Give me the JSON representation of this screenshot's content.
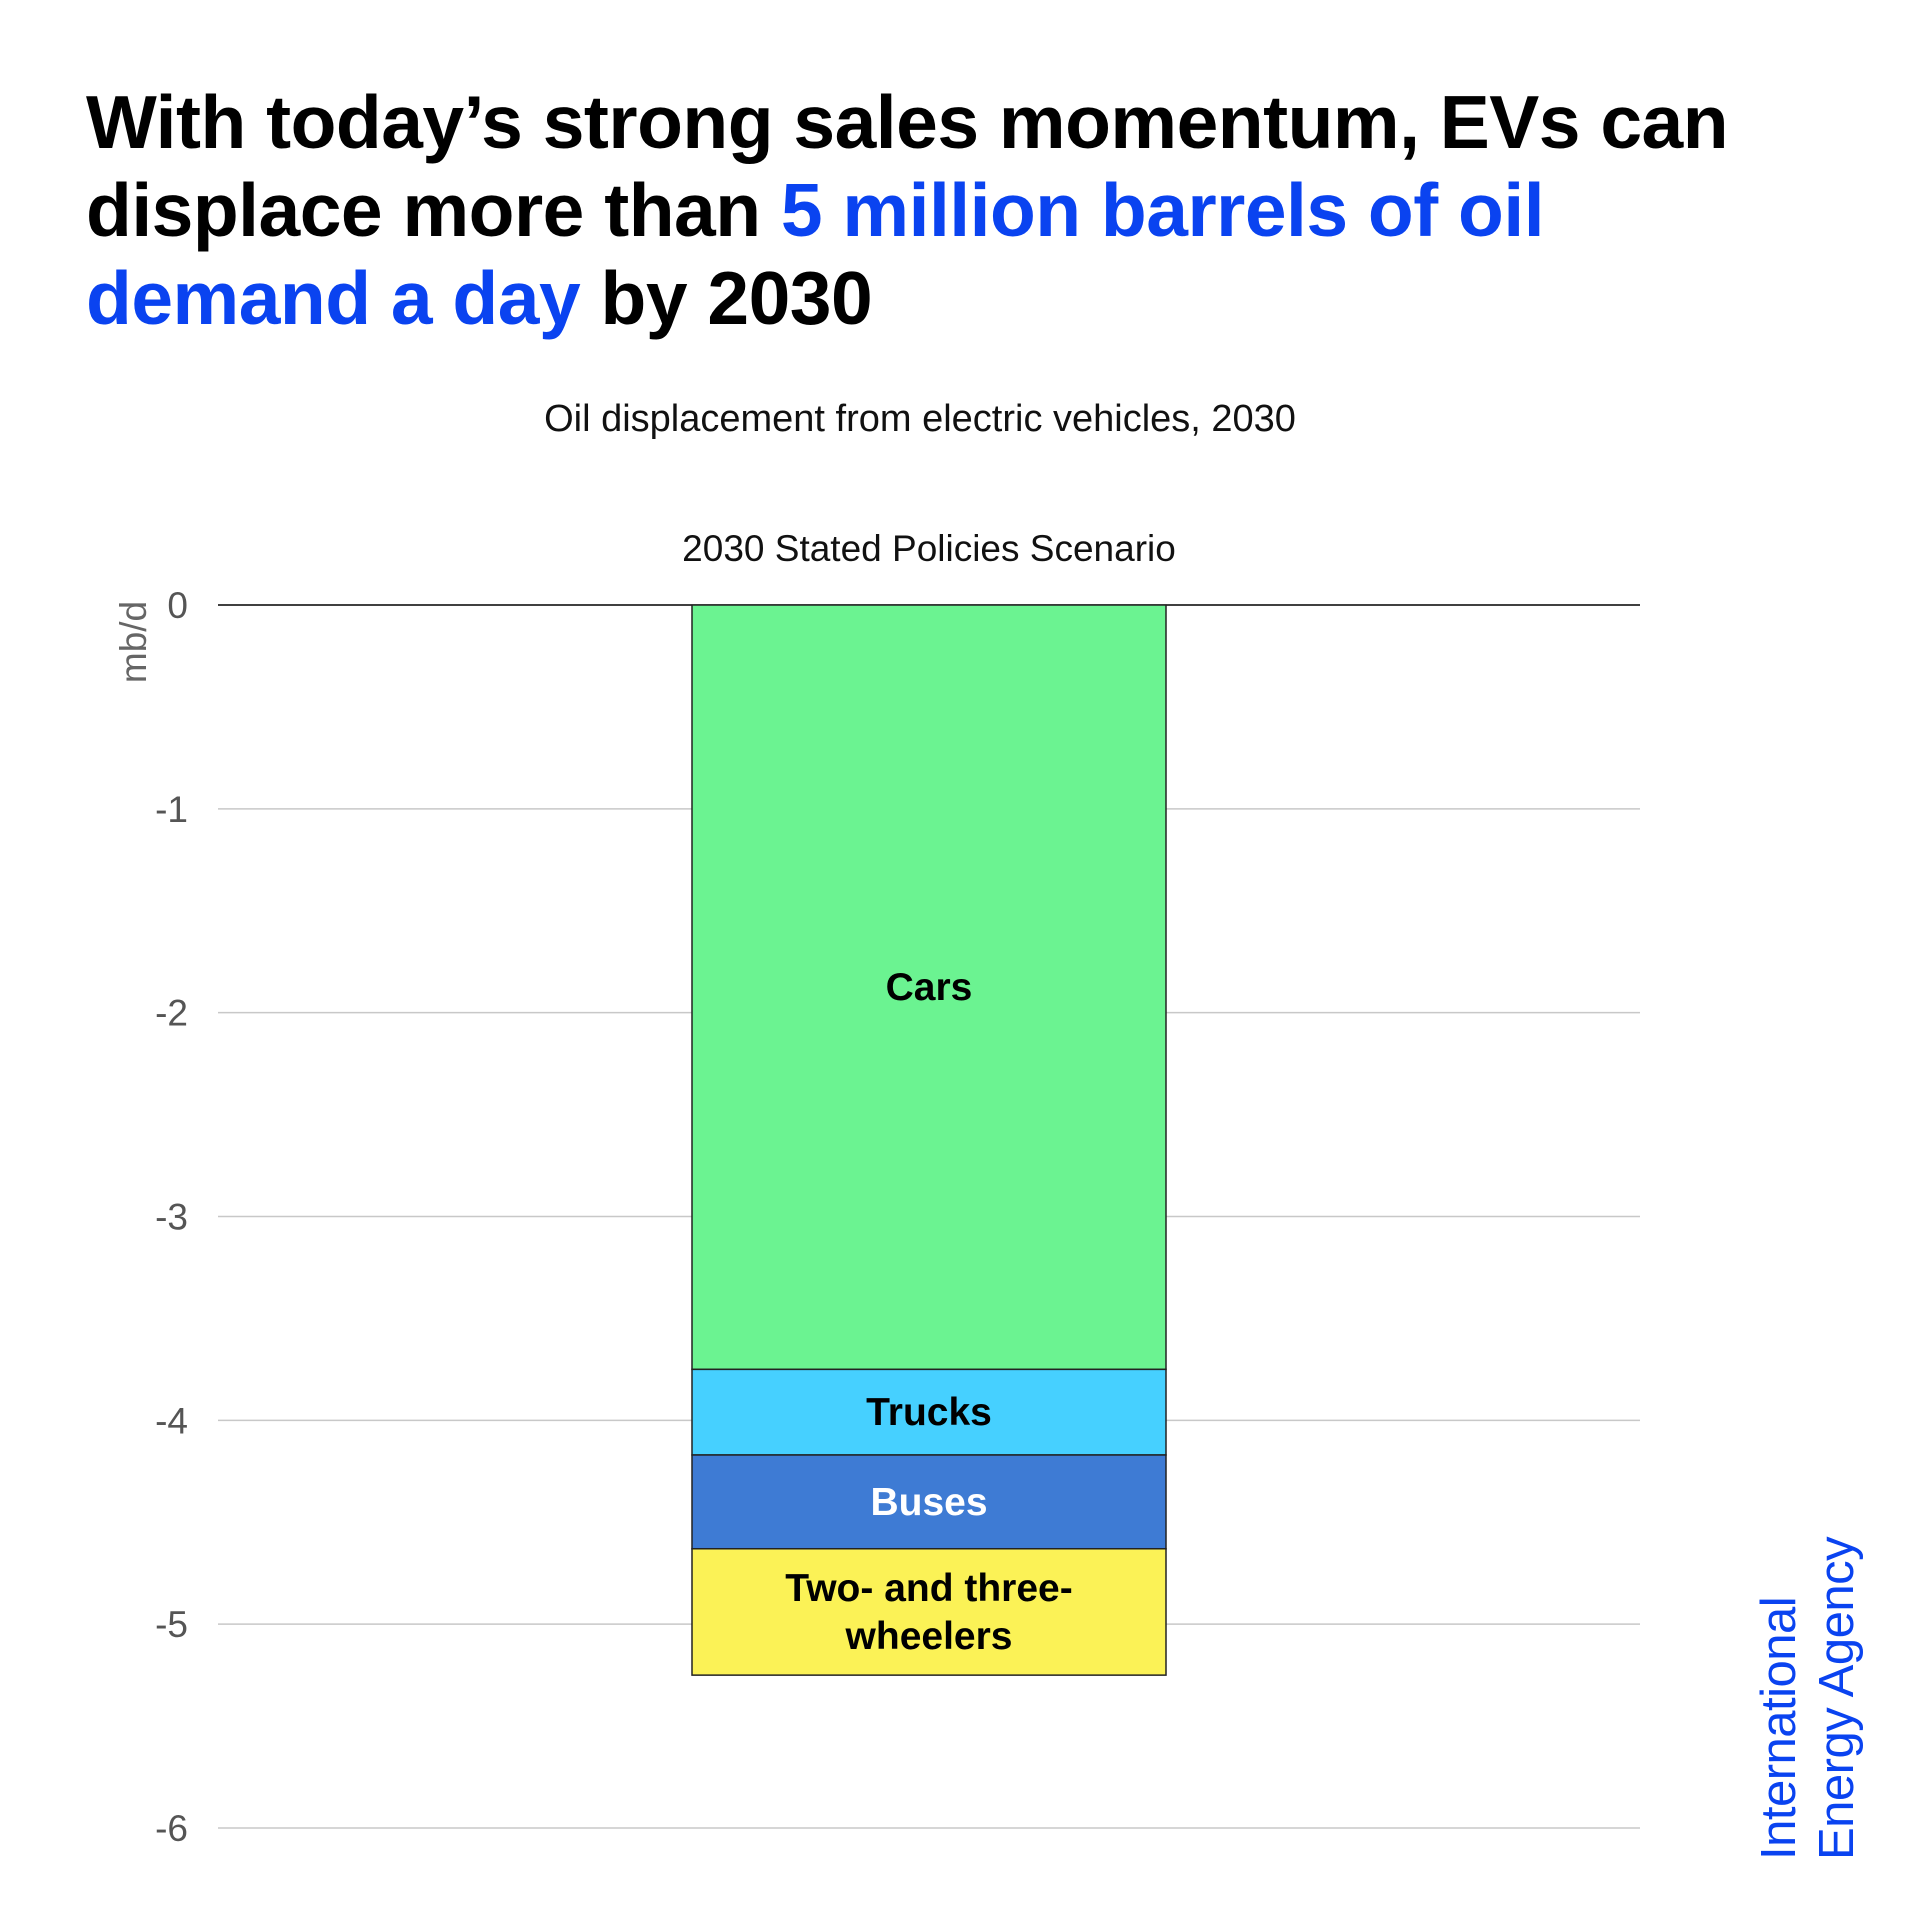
{
  "headline": {
    "part1": "With today’s strong sales momentum, EVs can displace more than ",
    "highlight": "5 million barrels of oil demand a day",
    "part2": " by 2030"
  },
  "subtitle": "Oil displacement from electric vehicles, 2030",
  "logo": {
    "line1": "International",
    "line2": "Energy Agency"
  },
  "colors": {
    "accent": "#0a43f0",
    "cars": "#6bf391",
    "trucks": "#46d0ff",
    "buses": "#3e7bd4",
    "two_three_wheelers": "#fbf256"
  },
  "chart_data": {
    "type": "bar",
    "stacked": true,
    "categories": [
      "2030 Stated Policies Scenario"
    ],
    "series": [
      {
        "name": "Cars",
        "values": [
          -3.75
        ],
        "color": "#6bf391",
        "label_color": "#000000",
        "label_lines": [
          "Cars"
        ]
      },
      {
        "name": "Trucks",
        "values": [
          -0.42
        ],
        "color": "#46d0ff",
        "label_color": "#000000",
        "label_lines": [
          "Trucks"
        ]
      },
      {
        "name": "Buses",
        "values": [
          -0.46
        ],
        "color": "#3e7bd4",
        "label_color": "#ffffff",
        "label_lines": [
          "Buses"
        ]
      },
      {
        "name": "Two- and three-wheelers",
        "values": [
          -0.62
        ],
        "color": "#fbf256",
        "label_color": "#000000",
        "label_lines": [
          "Two- and three-",
          "wheelers"
        ]
      }
    ],
    "ylabel": "mb/d",
    "xlabel": "",
    "ylim": [
      -6,
      0
    ],
    "yticks": [
      0,
      -1,
      -2,
      -3,
      -4,
      -5,
      -6
    ],
    "ytick_labels": [
      "0",
      "-1",
      "-2",
      "-3",
      "-4",
      "-5",
      "-6"
    ],
    "grid": true,
    "legend": "none"
  }
}
